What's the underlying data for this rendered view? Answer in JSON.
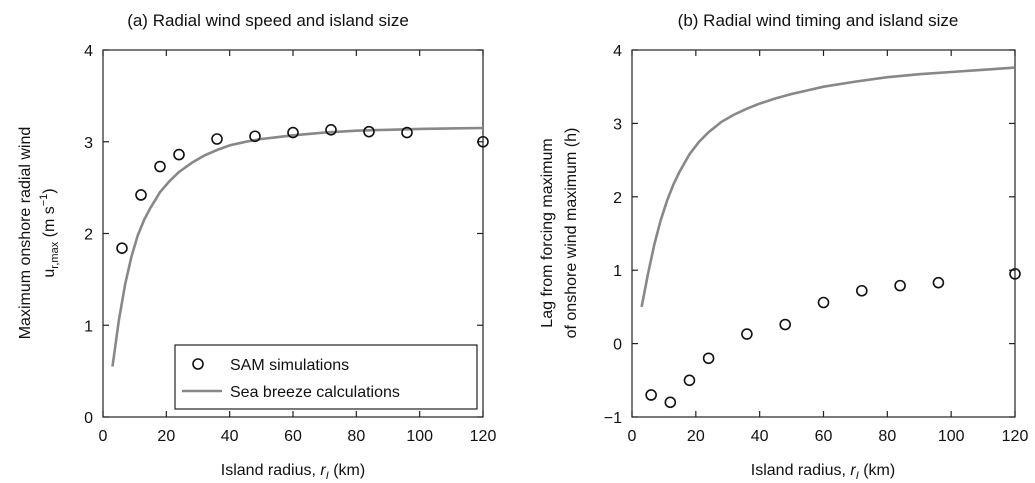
{
  "chart_data": [
    {
      "panel": "a",
      "type": "scatter",
      "title": "(a) Radial wind speed and island size",
      "xlabel_main": "Island radius, ",
      "xlabel_var": "r",
      "xlabel_sub": "I",
      "xlabel_unit": " (km)",
      "ylabel_line1": "Maximum onshore radial wind",
      "ylabel_var": "u",
      "ylabel_sub": "r,max",
      "ylabel_unit": " (m s",
      "ylabel_exp": "−1",
      "ylabel_close": ")",
      "xlim": [
        0,
        120
      ],
      "ylim": [
        0,
        4
      ],
      "xticks": [
        "0",
        "20",
        "40",
        "60",
        "80",
        "100",
        "120"
      ],
      "yticks": [
        "0",
        "1",
        "2",
        "3",
        "4"
      ],
      "legend": {
        "position": "bottom-right",
        "entries": [
          "SAM simulations",
          "Sea breeze calculations"
        ]
      },
      "series": [
        {
          "name": "SAM simulations",
          "kind": "markers",
          "x": [
            6,
            12,
            18,
            24,
            36,
            48,
            60,
            72,
            84,
            96,
            120
          ],
          "y": [
            1.84,
            2.42,
            2.73,
            2.86,
            3.03,
            3.06,
            3.1,
            3.13,
            3.11,
            3.1,
            3.0
          ]
        },
        {
          "name": "Sea breeze calculations",
          "kind": "line",
          "color": "#888888",
          "x": [
            3,
            5,
            7,
            9,
            11,
            13,
            15,
            18,
            21,
            24,
            28,
            32,
            36,
            40,
            45,
            50,
            55,
            60,
            70,
            80,
            90,
            100,
            110,
            120
          ],
          "y": [
            0.55,
            1.05,
            1.45,
            1.75,
            1.98,
            2.15,
            2.28,
            2.45,
            2.57,
            2.67,
            2.77,
            2.85,
            2.91,
            2.96,
            3.0,
            3.03,
            3.05,
            3.07,
            3.1,
            3.12,
            3.13,
            3.14,
            3.145,
            3.15
          ]
        }
      ]
    },
    {
      "panel": "b",
      "type": "scatter",
      "title": "(b) Radial wind timing and island size",
      "xlabel_main": "Island radius, ",
      "xlabel_var": "r",
      "xlabel_sub": "I",
      "xlabel_unit": " (km)",
      "ylabel_line1": "Lag from forcing maximum",
      "ylabel_line2": "of onshore wind maximum (h)",
      "xlim": [
        0,
        120
      ],
      "ylim": [
        -1,
        4
      ],
      "xticks": [
        "0",
        "20",
        "40",
        "60",
        "80",
        "100",
        "120"
      ],
      "yticks": [
        "−1",
        "0",
        "1",
        "2",
        "3",
        "4"
      ],
      "series": [
        {
          "kind": "markers",
          "x": [
            6,
            12,
            18,
            24,
            36,
            48,
            60,
            72,
            84,
            96,
            120
          ],
          "y": [
            -0.7,
            -0.8,
            -0.5,
            -0.2,
            0.13,
            0.26,
            0.56,
            0.72,
            0.79,
            0.83,
            0.95
          ]
        },
        {
          "kind": "line",
          "color": "#888888",
          "x": [
            3,
            5,
            7,
            9,
            11,
            13,
            15,
            18,
            21,
            24,
            28,
            32,
            36,
            40,
            45,
            50,
            55,
            60,
            70,
            80,
            90,
            100,
            110,
            120
          ],
          "y": [
            0.5,
            0.95,
            1.35,
            1.68,
            1.95,
            2.17,
            2.35,
            2.58,
            2.75,
            2.88,
            3.02,
            3.12,
            3.2,
            3.27,
            3.34,
            3.4,
            3.45,
            3.5,
            3.57,
            3.63,
            3.67,
            3.7,
            3.73,
            3.76
          ]
        }
      ]
    }
  ]
}
